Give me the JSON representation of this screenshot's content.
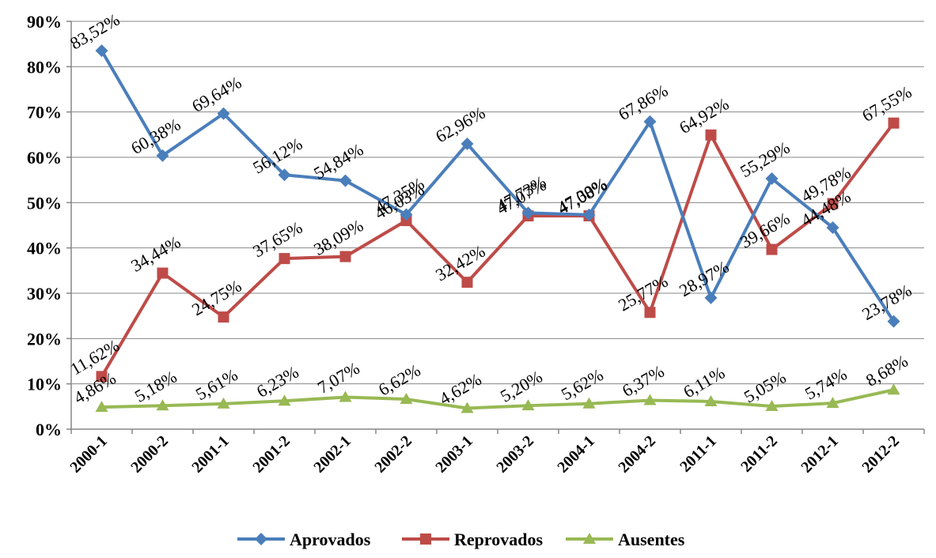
{
  "chart_data": {
    "type": "line",
    "title": "",
    "xlabel": "",
    "ylabel": "",
    "ylim": [
      0,
      90
    ],
    "y_ticks": [
      "0%",
      "10%",
      "20%",
      "30%",
      "40%",
      "50%",
      "60%",
      "70%",
      "80%",
      "90%"
    ],
    "grid": "horizontal",
    "legend_position": "bottom",
    "categories": [
      "2000-1",
      "2000-2",
      "2001-1",
      "2001-2",
      "2002-1",
      "2002-2",
      "2003-1",
      "2003-2",
      "2004-1",
      "2004-2",
      "2011-1",
      "2011-2",
      "2012-1",
      "2012-2"
    ],
    "series": [
      {
        "name": "Aprovados",
        "color": "#4a7ebb",
        "marker": "diamond",
        "values": [
          83.52,
          60.38,
          69.64,
          56.12,
          54.84,
          47.35,
          62.96,
          47.73,
          47.3,
          67.86,
          28.97,
          55.29,
          44.48,
          23.78
        ],
        "labels": [
          "83,52%",
          "60,38%",
          "69,64%",
          "56,12%",
          "54,84%",
          "47,35%",
          "62,96%",
          "47,73%",
          "47,30%",
          "67,86%",
          "28,97%",
          "55,29%",
          "44,48%",
          "23,78%"
        ]
      },
      {
        "name": "Reprovados",
        "color": "#be4b48",
        "marker": "square",
        "values": [
          11.62,
          34.44,
          24.75,
          37.65,
          38.09,
          46.03,
          32.42,
          47.07,
          47.08,
          25.77,
          64.92,
          39.66,
          49.78,
          67.55
        ],
        "labels": [
          "11,62%",
          "34,44%",
          "24,75%",
          "37,65%",
          "38,09%",
          "46,03%",
          "32,42%",
          "47,07%",
          "47,08%",
          "25,77%",
          "64,92%",
          "39,66%",
          "49,78%",
          "67,55%"
        ]
      },
      {
        "name": "Ausentes",
        "color": "#98b954",
        "marker": "triangle",
        "values": [
          4.86,
          5.18,
          5.61,
          6.23,
          7.07,
          6.62,
          4.62,
          5.2,
          5.62,
          6.37,
          6.11,
          5.05,
          5.74,
          8.68
        ],
        "labels": [
          "4,86%",
          "5,18%",
          "5,61%",
          "6,23%",
          "7,07%",
          "6,62%",
          "4,62%",
          "5,20%",
          "5,62%",
          "6,37%",
          "6,11%",
          "5,05%",
          "5,74%",
          "8,68%"
        ]
      }
    ]
  }
}
